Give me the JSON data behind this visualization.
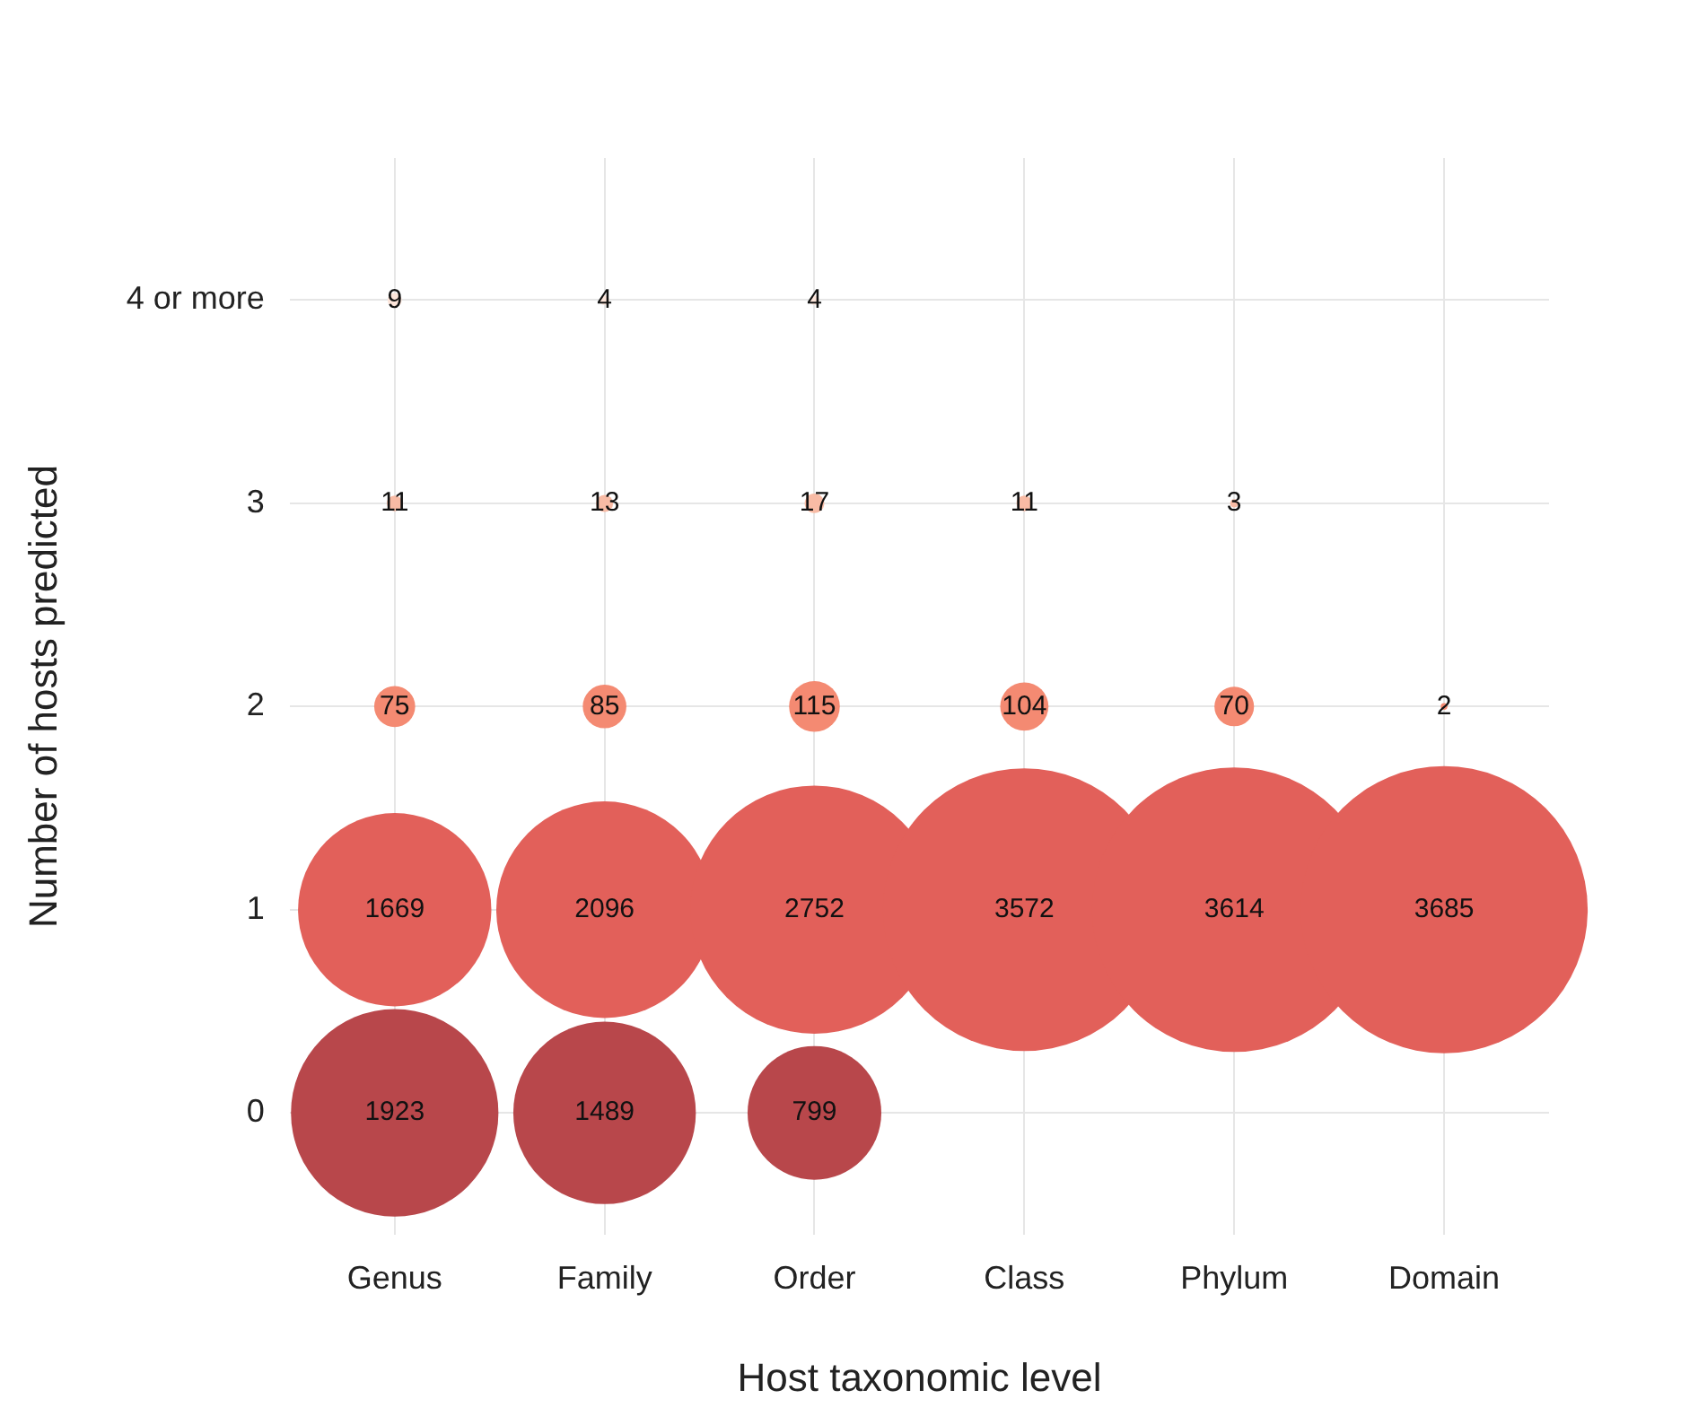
{
  "chart_data": {
    "type": "bubble",
    "xlabel": "Host taxonomic level",
    "ylabel": "Number of hosts predicted",
    "categories": [
      "Genus",
      "Family",
      "Order",
      "Class",
      "Phylum",
      "Domain"
    ],
    "ylim": [
      -0.6,
      4.7
    ],
    "yticks": [
      0,
      1,
      2,
      3,
      {
        "value": 4,
        "label": "4 or more"
      }
    ],
    "grid": true,
    "legend": false,
    "series": [
      {
        "color": "#b8474b",
        "values": [
          0,
          0,
          0,
          null,
          null,
          null
        ],
        "sizes": [
          1923,
          1489,
          799,
          null,
          null,
          null
        ],
        "value_labels": [
          "1923",
          "1489",
          "799",
          null,
          null,
          null
        ]
      },
      {
        "color": "#e2605a",
        "values": [
          1,
          1,
          1,
          1,
          1,
          1
        ],
        "sizes": [
          1669,
          2096,
          2752,
          3572,
          3614,
          3685
        ],
        "value_labels": [
          "1669",
          "2096",
          "2752",
          "3572",
          "3614",
          "3685"
        ]
      },
      {
        "color": "#f48a72",
        "values": [
          2,
          2,
          2,
          2,
          2,
          2
        ],
        "sizes": [
          75,
          85,
          115,
          104,
          70,
          2
        ],
        "value_labels": [
          "75",
          "85",
          "115",
          "104",
          "70",
          "2"
        ]
      },
      {
        "color": "#f8bba5",
        "values": [
          3,
          3,
          3,
          3,
          3,
          null
        ],
        "sizes": [
          11,
          13,
          17,
          11,
          3,
          null
        ],
        "value_labels": [
          "11",
          "13",
          "17",
          "11",
          "3",
          null
        ]
      },
      {
        "color": "#fce5da",
        "values": [
          4,
          4,
          4,
          null,
          null,
          null
        ],
        "sizes": [
          9,
          4,
          4,
          null,
          null,
          null
        ],
        "value_labels": [
          "9",
          "4",
          "4",
          null,
          null,
          null
        ]
      }
    ]
  }
}
